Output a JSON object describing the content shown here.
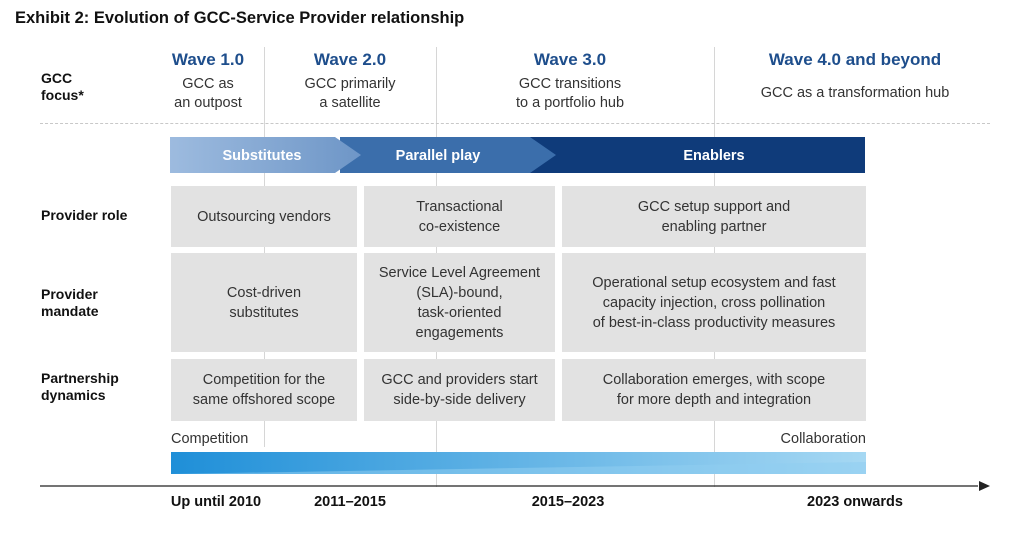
{
  "title": "Exhibit 2: Evolution of GCC-Service Provider relationship",
  "row_labels": {
    "gcc_focus": "GCC\nfocus*",
    "provider_role": "Provider role",
    "provider_mandate": "Provider\nmandate",
    "partnership_dynamics": "Partnership\ndynamics"
  },
  "waves": [
    {
      "title": "Wave 1.0",
      "desc": "GCC as\nan outpost"
    },
    {
      "title": "Wave 2.0",
      "desc": "GCC primarily\na satellite"
    },
    {
      "title": "Wave 3.0",
      "desc": "GCC transitions\nto a portfolio hub"
    },
    {
      "title": "Wave 4.0 and beyond",
      "desc": "GCC as a transformation hub"
    }
  ],
  "arrows": [
    "Substitutes",
    "Parallel play",
    "Enablers"
  ],
  "provider_role": [
    "Outsourcing vendors",
    "Transactional\nco-existence",
    "GCC setup support and\nenabling partner"
  ],
  "provider_mandate": [
    "Cost-driven\nsubstitutes",
    "Service Level Agreement\n(SLA)-bound,\ntask-oriented\nengagements",
    "Operational setup ecosystem and fast\ncapacity injection, cross pollination\nof best-in-class productivity measures"
  ],
  "partnership_dynamics": [
    "Competition for the\nsame offshored scope",
    "GCC and providers start\nside-by-side delivery",
    "Collaboration emerges, with scope\nfor more depth and integration"
  ],
  "spectrum": {
    "left": "Competition",
    "right": "Collaboration"
  },
  "timeline": [
    "Up until 2010",
    "2011–2015",
    "2015–2023",
    "2023 onwards"
  ],
  "colors": {
    "wave_title": "#1e4e8c",
    "arrow_light": "#7ea3cf",
    "arrow_mid": "#3b6eab",
    "arrow_dark": "#0f3b7a",
    "cell_bg": "#e2e2e2",
    "gradient_left": "#1f8fd8",
    "gradient_right": "#9fd4f2"
  }
}
